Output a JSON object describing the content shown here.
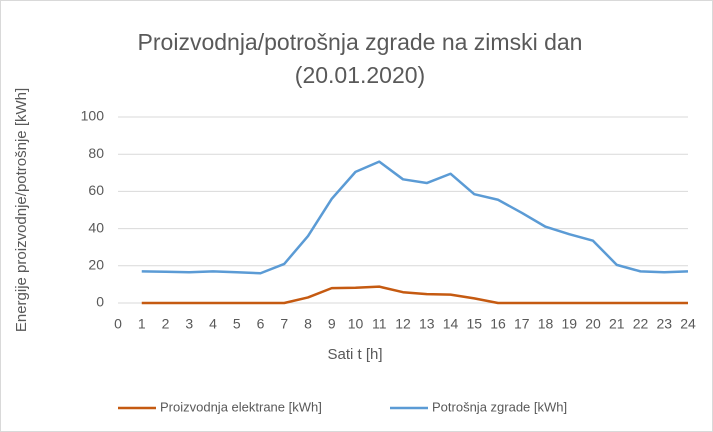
{
  "chart_data": {
    "type": "line",
    "title": "Proizvodnja/potrošnja zgrade na zimski dan (20.01.2020)",
    "x_label": "Sati t [h]",
    "y_label": "Energije proizvodnje/potrošnje [kWh]",
    "x": [
      1,
      2,
      3,
      4,
      5,
      6,
      7,
      8,
      9,
      10,
      11,
      12,
      13,
      14,
      15,
      16,
      17,
      18,
      19,
      20,
      21,
      22,
      23,
      24
    ],
    "series": [
      {
        "name": "Proizvodnja elektrane [kWh]",
        "color": "#c55a11",
        "values": [
          0,
          0,
          0,
          0,
          0,
          0,
          0,
          3,
          8,
          8.2,
          8.8,
          5.8,
          4.8,
          4.5,
          2.5,
          0,
          0,
          0,
          0,
          0,
          0,
          0,
          0,
          0
        ]
      },
      {
        "name": "Potrošnja zgrade [kWh]",
        "color": "#5b9bd5",
        "values": [
          17,
          16.8,
          16.5,
          17,
          16.5,
          16,
          21,
          36,
          56,
          70.5,
          76,
          66.5,
          64.5,
          69.5,
          58.5,
          55.5,
          48.5,
          41,
          37,
          33.5,
          20.5,
          17,
          16.5,
          17
        ]
      }
    ],
    "xlim": [
      0,
      24
    ],
    "xticks": [
      0,
      1,
      2,
      3,
      4,
      5,
      6,
      7,
      8,
      9,
      10,
      11,
      12,
      13,
      14,
      15,
      16,
      17,
      18,
      19,
      20,
      21,
      22,
      23,
      24
    ],
    "ylim": [
      0,
      100
    ],
    "yticks": [
      0,
      20,
      40,
      60,
      80,
      100
    ],
    "grid": true,
    "legend": "bottom"
  }
}
